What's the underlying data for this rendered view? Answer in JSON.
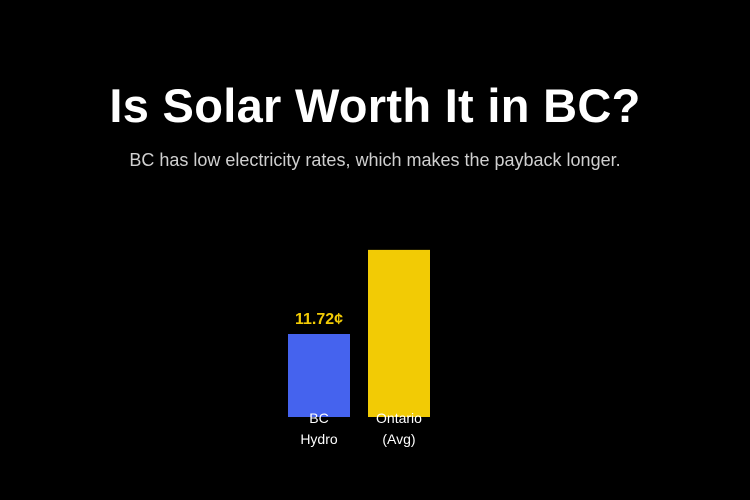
{
  "chart_data": {
    "type": "bar",
    "title": "Is Solar Worth It in BC?",
    "subtitle": "BC has low electricity rates, which makes the payback longer.",
    "categories": [
      [
        "BC",
        "Hydro"
      ],
      [
        "Ontario",
        "(Avg)"
      ]
    ],
    "values": [
      11.72,
      23.6
    ],
    "data_labels": [
      "11.72¢",
      null
    ],
    "unit": "¢",
    "colors": [
      "#4563ee",
      "#f2cb05"
    ],
    "value_label_color": "#f2cb05",
    "grid": false,
    "axes_visible": false
  }
}
